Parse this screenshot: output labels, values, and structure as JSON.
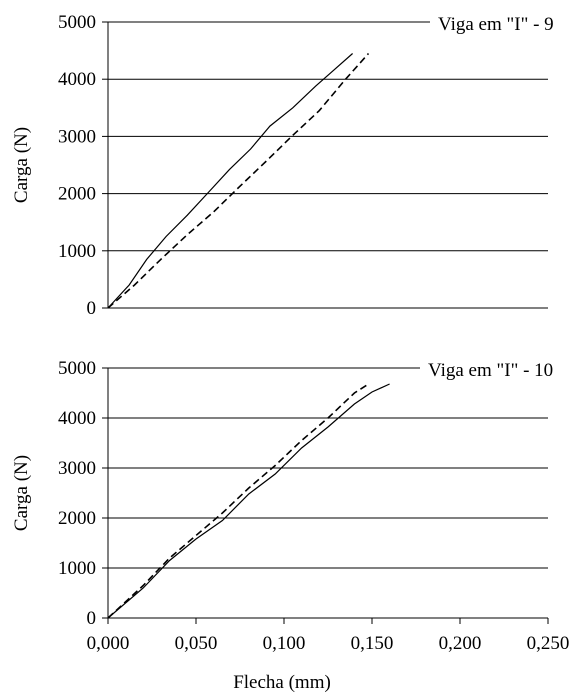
{
  "chart_data": [
    {
      "type": "line",
      "title": "Viga em \"I\" - 9",
      "xlabel": "",
      "ylabel": "Carga (N)",
      "xlim": [
        0,
        0.25
      ],
      "ylim": [
        0,
        5000
      ],
      "yticks": [
        "0",
        "1000",
        "2000",
        "3000",
        "4000",
        "5000"
      ],
      "grid": "horizontal",
      "series": [
        {
          "style": "solid",
          "points": [
            [
              0,
              0
            ],
            [
              0.012,
              400
            ],
            [
              0.022,
              850
            ],
            [
              0.033,
              1250
            ],
            [
              0.045,
              1620
            ],
            [
              0.057,
              2020
            ],
            [
              0.069,
              2420
            ],
            [
              0.081,
              2780
            ],
            [
              0.092,
              3180
            ],
            [
              0.105,
              3500
            ],
            [
              0.118,
              3880
            ],
            [
              0.128,
              4150
            ],
            [
              0.139,
              4450
            ]
          ]
        },
        {
          "style": "dashed",
          "points": [
            [
              0,
              0
            ],
            [
              0.015,
              400
            ],
            [
              0.03,
              850
            ],
            [
              0.045,
              1280
            ],
            [
              0.06,
              1680
            ],
            [
              0.075,
              2130
            ],
            [
              0.09,
              2570
            ],
            [
              0.105,
              3020
            ],
            [
              0.12,
              3450
            ],
            [
              0.135,
              4000
            ],
            [
              0.148,
              4450
            ]
          ]
        }
      ]
    },
    {
      "type": "line",
      "title": "Viga em \"I\" - 10",
      "xlabel": "Flecha (mm)",
      "ylabel": "Carga (N)",
      "xlim": [
        0,
        0.25
      ],
      "ylim": [
        0,
        5000
      ],
      "yticks": [
        "0",
        "1000",
        "2000",
        "3000",
        "4000",
        "5000"
      ],
      "xticks": [
        "0,000",
        "0,050",
        "0,100",
        "0,150",
        "0,200",
        "0,250"
      ],
      "grid": "horizontal",
      "series": [
        {
          "style": "solid",
          "points": [
            [
              0,
              0
            ],
            [
              0.02,
              600
            ],
            [
              0.035,
              1150
            ],
            [
              0.05,
              1580
            ],
            [
              0.065,
              1950
            ],
            [
              0.08,
              2480
            ],
            [
              0.095,
              2880
            ],
            [
              0.11,
              3400
            ],
            [
              0.125,
              3820
            ],
            [
              0.14,
              4280
            ],
            [
              0.15,
              4520
            ],
            [
              0.16,
              4680
            ]
          ]
        },
        {
          "style": "dashed",
          "points": [
            [
              0,
              0
            ],
            [
              0.02,
              650
            ],
            [
              0.035,
              1200
            ],
            [
              0.05,
              1650
            ],
            [
              0.065,
              2100
            ],
            [
              0.08,
              2600
            ],
            [
              0.095,
              3050
            ],
            [
              0.11,
              3550
            ],
            [
              0.125,
              4000
            ],
            [
              0.14,
              4500
            ],
            [
              0.148,
              4680
            ]
          ]
        }
      ]
    }
  ]
}
